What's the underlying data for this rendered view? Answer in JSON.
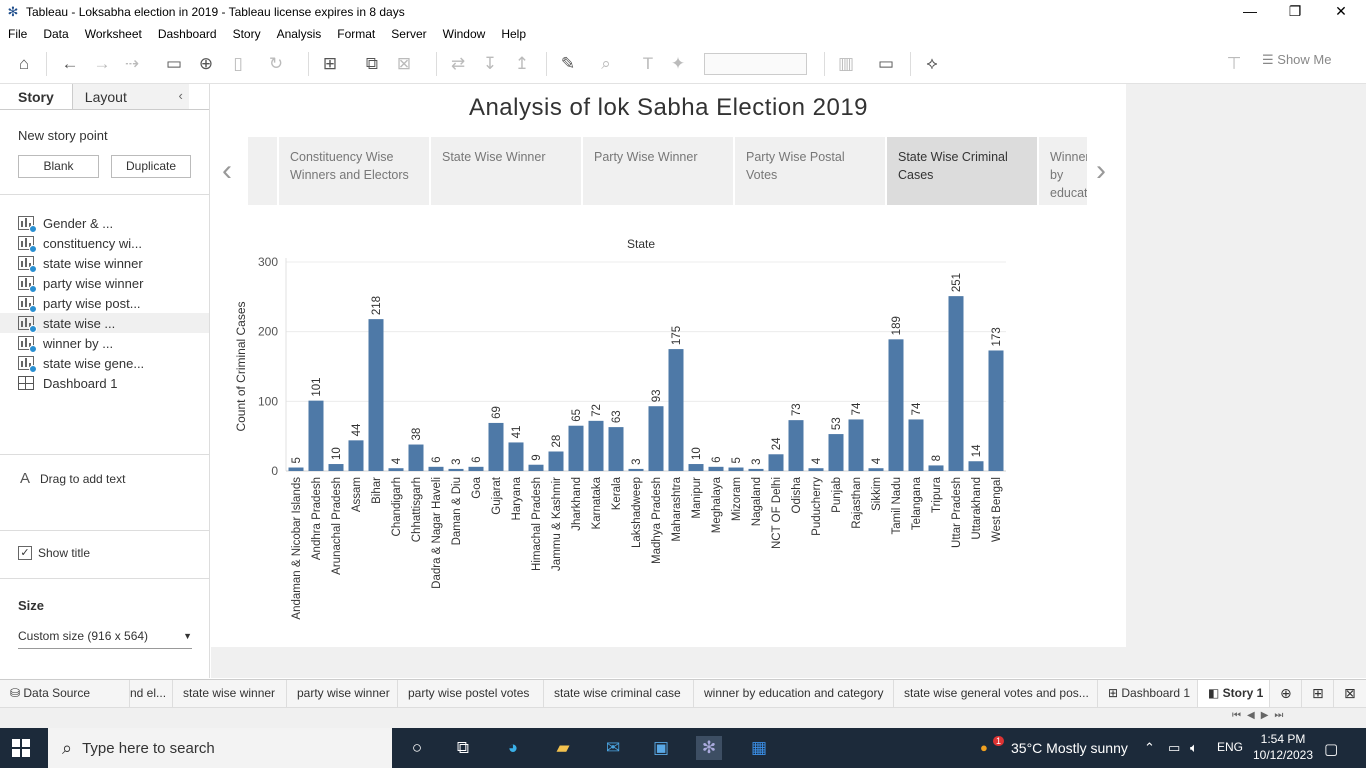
{
  "window": {
    "title": "Tableau - Loksabha election in 2019 - Tableau license expires in 8 days",
    "minimize": "—",
    "restore": "❐",
    "close": "✕"
  },
  "menu": [
    "File",
    "Data",
    "Worksheet",
    "Dashboard",
    "Story",
    "Analysis",
    "Format",
    "Server",
    "Window",
    "Help"
  ],
  "toolbar": {
    "show_me_label": "Show Me",
    "icons": [
      "home-icon",
      "undo-icon",
      "redo-icon",
      "replay-icon",
      "save-icon",
      "new-data-source-icon",
      "pause-icon",
      "refresh-icon",
      "new-worksheet-icon",
      "duplicate-icon",
      "clear-icon",
      "swap-icon",
      "sort-ascending-icon",
      "sort-descending-icon",
      "highlight-icon",
      "annotate-icon",
      "labels-icon",
      "pin-icon",
      "show-cards-icon",
      "presentation-icon",
      "share-icon",
      "format-painter-icon"
    ]
  },
  "sidebar": {
    "tabs": {
      "story": "Story",
      "layout": "Layout"
    },
    "new_story_point": "New story point",
    "blank_button": "Blank",
    "duplicate_button": "Duplicate",
    "items": [
      {
        "label": "Gender & ...",
        "type": "sheet"
      },
      {
        "label": "constituency wi...",
        "type": "sheet"
      },
      {
        "label": "state wise winner",
        "type": "sheet"
      },
      {
        "label": "party wise winner",
        "type": "sheet"
      },
      {
        "label": "party wise post...",
        "type": "sheet"
      },
      {
        "label": "state wise ...",
        "type": "sheet",
        "selected": true
      },
      {
        "label": "winner by ...",
        "type": "sheet"
      },
      {
        "label": "state wise gene...",
        "type": "sheet"
      },
      {
        "label": "Dashboard 1",
        "type": "dashboard"
      }
    ],
    "drag_text": "Drag to add text",
    "drag_icon_glyph": "A",
    "show_title": "Show title",
    "show_title_checked": true,
    "size_header": "Size",
    "size_value": "Custom size (916 x 564)"
  },
  "story": {
    "title": "Analysis of lok Sabha Election 2019",
    "captions": [
      {
        "text": "Constituency Wise Winners and Electors",
        "active": false
      },
      {
        "text": "State Wise Winner",
        "active": false
      },
      {
        "text": "Party Wise Winner",
        "active": false
      },
      {
        "text": "Party Wise Postal Votes",
        "active": false
      },
      {
        "text": "State Wise Criminal Cases",
        "active": true
      },
      {
        "text": "Winner by education and category",
        "active": false
      }
    ]
  },
  "chart_data": {
    "type": "bar",
    "title": "State",
    "ylabel": "Count of Criminal Cases",
    "ylim": [
      0,
      300
    ],
    "yticks": [
      0,
      100,
      200,
      300
    ],
    "bar_color": "#4e79a7",
    "grid": true,
    "categories": [
      "Andaman & Nicobar Islands",
      "Andhra Pradesh",
      "Arunachal Pradesh",
      "Assam",
      "Bihar",
      "Chandigarh",
      "Chhattisgarh",
      "Dadra & Nagar Haveli",
      "Daman & Diu",
      "Goa",
      "Gujarat",
      "Haryana",
      "Himachal Pradesh",
      "Jammu & Kashmir",
      "Jharkhand",
      "Karnataka",
      "Kerala",
      "Lakshadweep",
      "Madhya Pradesh",
      "Maharashtra",
      "Manipur",
      "Meghalaya",
      "Mizoram",
      "Nagaland",
      "NCT OF Delhi",
      "Odisha",
      "Puducherry",
      "Punjab",
      "Rajasthan",
      "Sikkim",
      "Tamil Nadu",
      "Telangana",
      "Tripura",
      "Uttar Pradesh",
      "Uttarakhand",
      "West Bengal"
    ],
    "values": [
      5,
      101,
      10,
      44,
      218,
      4,
      38,
      6,
      3,
      6,
      69,
      41,
      9,
      28,
      65,
      72,
      63,
      3,
      93,
      175,
      10,
      6,
      5,
      3,
      24,
      73,
      4,
      53,
      74,
      4,
      189,
      74,
      8,
      251,
      14,
      173
    ]
  },
  "bottom_tabs": [
    {
      "label": "Data Source",
      "icon": "database-icon"
    },
    {
      "label": "nd el..."
    },
    {
      "label": "state wise winner"
    },
    {
      "label": "party wise winner"
    },
    {
      "label": "party wise postel votes"
    },
    {
      "label": "state wise criminal case"
    },
    {
      "label": "winner by education and category"
    },
    {
      "label": "state wise general votes and pos..."
    },
    {
      "label": "Dashboard 1",
      "icon": "dashboard-icon"
    },
    {
      "label": "Story 1",
      "icon": "story-icon",
      "active": true
    }
  ],
  "taskbar": {
    "search_placeholder": "Type here to search",
    "weather": "35°C  Mostly sunny",
    "lang": "ENG",
    "time": "1:54 PM",
    "date": "10/12/2023",
    "notification_badge": "1"
  }
}
